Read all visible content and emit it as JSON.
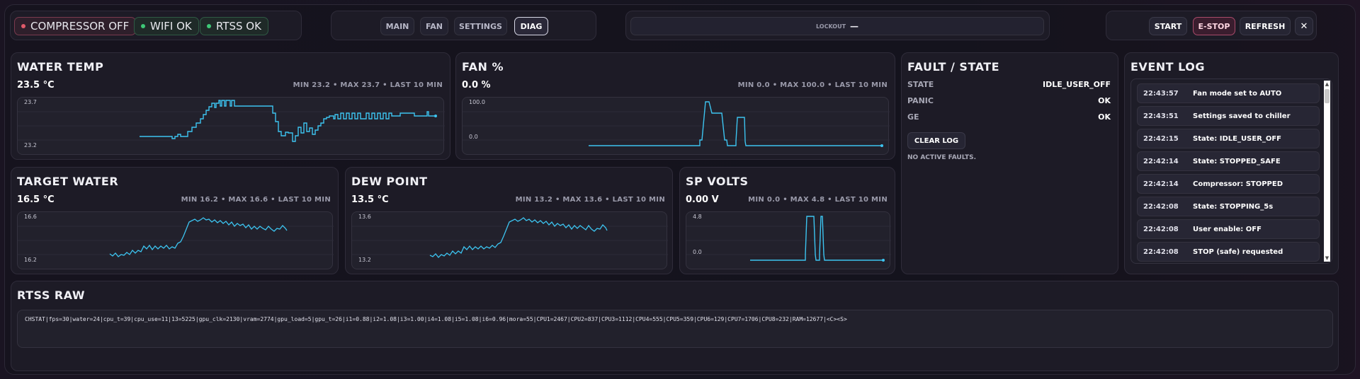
{
  "status": {
    "compressor": "COMPRESSOR OFF",
    "wifi": "WIFI OK",
    "rtss": "RTSS OK"
  },
  "tabs": [
    "MAIN",
    "FAN",
    "SETTINGS",
    "DIAG"
  ],
  "active_tab": "DIAG",
  "lockout": {
    "label": "LOCKOUT",
    "value": "—"
  },
  "actions": {
    "start": "START",
    "estop": "E-STOP",
    "refresh": "REFRESH",
    "close": "✕"
  },
  "cards": {
    "water_temp": {
      "title": "WATER TEMP",
      "value": "23.5 °C",
      "stats": "MIN 23.2 • MAX 23.7 • LAST 10 MIN",
      "ymax_label": "23.7",
      "ymin_label": "23.2"
    },
    "fan": {
      "title": "FAN %",
      "value": "0.0 %",
      "stats": "MIN 0.0 • MAX 100.0 • LAST 10 MIN",
      "ymax_label": "100.0",
      "ymin_label": "0.0"
    },
    "target_water": {
      "title": "TARGET WATER",
      "value": "16.5 °C",
      "stats": "MIN 16.2 • MAX 16.6 • LAST 10 MIN",
      "ymax_label": "16.6",
      "ymin_label": "16.2"
    },
    "dew_point": {
      "title": "DEW POINT",
      "value": "13.5 °C",
      "stats": "MIN 13.2 • MAX 13.6 • LAST 10 MIN",
      "ymax_label": "13.6",
      "ymin_label": "13.2"
    },
    "sp_volts": {
      "title": "SP VOLTS",
      "value": "0.00 V",
      "stats": "MIN 0.0 • MAX 4.8 • LAST 10 MIN",
      "ymax_label": "4.8",
      "ymin_label": "0.0"
    }
  },
  "fault": {
    "title": "FAULT / STATE",
    "rows": [
      {
        "label": "STATE",
        "value": "IDLE_USER_OFF"
      },
      {
        "label": "PANIC",
        "value": "OK"
      },
      {
        "label": "GE",
        "value": "OK"
      }
    ],
    "clear_label": "CLEAR LOG",
    "message": "NO ACTIVE FAULTS."
  },
  "event_log": {
    "title": "EVENT LOG",
    "entries": [
      {
        "time": "22:43:57",
        "msg": "Fan mode set to AUTO"
      },
      {
        "time": "22:43:51",
        "msg": "Settings saved to chiller"
      },
      {
        "time": "22:42:15",
        "msg": "State: IDLE_USER_OFF"
      },
      {
        "time": "22:42:14",
        "msg": "State: STOPPED_SAFE"
      },
      {
        "time": "22:42:14",
        "msg": "Compressor: STOPPED"
      },
      {
        "time": "22:42:08",
        "msg": "State: STOPPING_5s"
      },
      {
        "time": "22:42:08",
        "msg": "User enable: OFF"
      },
      {
        "time": "22:42:08",
        "msg": "STOP (safe) requested"
      }
    ]
  },
  "rtss_raw": {
    "title": "RTSS RAW",
    "text": "CHSTAT|fps=30|water=24|cpu_t=39|cpu_use=11|13=5225|gpu_clk=2130|vram=2774|gpu_load=5|gpu_t=26|i1=0.88|i2=1.08|i3=1.00|i4=1.08|i5=1.08|i6=0.96|mora=55|CPU1=2467|CPU2=837|CPU3=1112|CPU4=555|CPU5=359|CPU6=129|CPU7=1706|CPU8=232|RAM=12677|<C><S>"
  },
  "colors": {
    "line": "#3cc4f0",
    "accent_red": "#e05a6a",
    "accent_green": "#3ec877"
  }
}
